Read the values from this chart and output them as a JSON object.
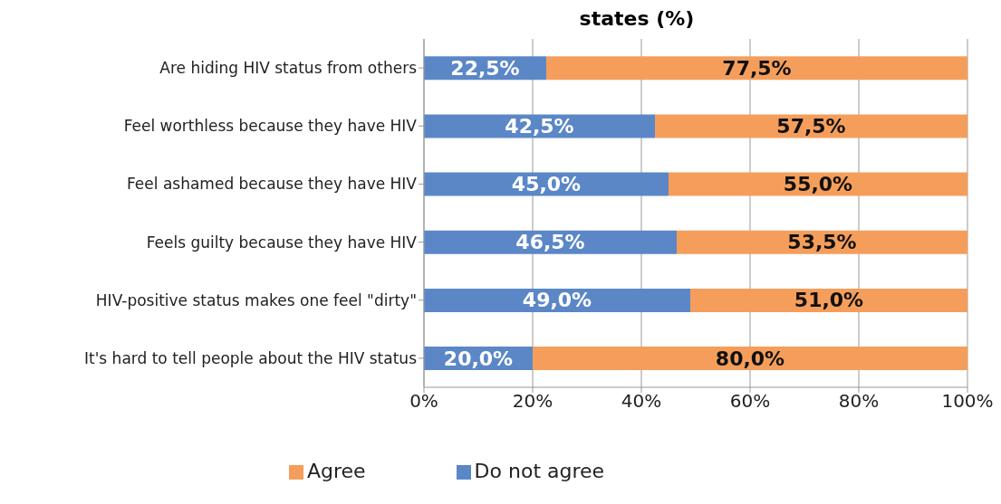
{
  "chart_data": {
    "type": "bar",
    "orientation": "horizontal",
    "stacked": true,
    "title": "states (%)",
    "categories": [
      "Are hiding HIV status from others",
      "Feel worthless because they have HIV",
      "Feel ashamed because they have HIV",
      "Feels guilty because they have HIV",
      "HIV-positive status makes one feel \"dirty\"",
      "It's hard to tell people about the HIV status"
    ],
    "series": [
      {
        "name": "Do not agree",
        "color": "#5b87c7",
        "values": [
          22.5,
          42.5,
          45.0,
          46.5,
          49.0,
          20.0
        ],
        "value_labels": [
          "22,5%",
          "42,5%",
          "45,0%",
          "46,5%",
          "49,0%",
          "20,0%"
        ]
      },
      {
        "name": "Agree",
        "color": "#f59e5b",
        "values": [
          77.5,
          57.5,
          55.0,
          53.5,
          51.0,
          80.0
        ],
        "value_labels": [
          "77,5%",
          "57,5%",
          "55,0%",
          "53,5%",
          "51,0%",
          "80,0%"
        ]
      }
    ],
    "xlim": [
      0,
      100
    ],
    "xticks": [
      {
        "value": 0,
        "label": "0%"
      },
      {
        "value": 20,
        "label": "20%"
      },
      {
        "value": 40,
        "label": "40%"
      },
      {
        "value": 60,
        "label": "60%"
      },
      {
        "value": 80,
        "label": "80%"
      },
      {
        "value": 100,
        "label": "100%"
      }
    ],
    "grid": "x",
    "legend": "bottom"
  }
}
